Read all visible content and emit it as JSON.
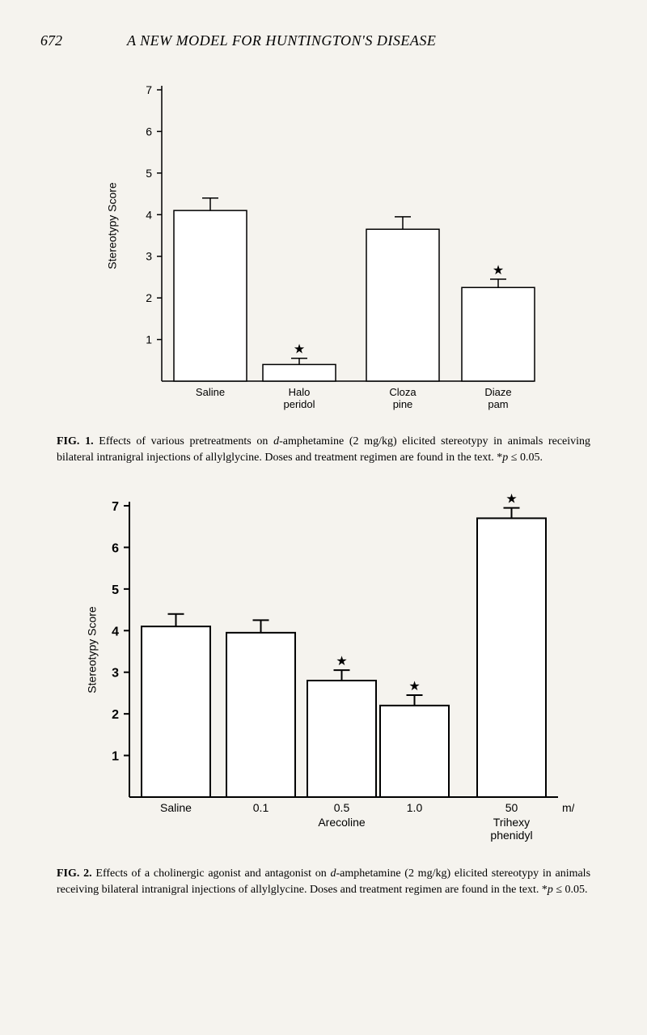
{
  "header": {
    "page_number": "672",
    "title": "A NEW MODEL FOR HUNTINGTON'S DISEASE"
  },
  "figure1": {
    "type": "bar",
    "y_axis_label": "Stereotypy Score",
    "ylim": [
      0,
      7
    ],
    "ytick_step": 1,
    "yticks": [
      1,
      2,
      3,
      4,
      5,
      6,
      7
    ],
    "bar_fill": "#ffffff",
    "bar_stroke": "#000000",
    "stroke_width": 1.5,
    "background_color": "#f5f3ee",
    "error_bar_color": "#000000",
    "bars": [
      {
        "label_line1": "Saline",
        "label_line2": "",
        "value": 4.1,
        "error": 0.3,
        "star": false
      },
      {
        "label_line1": "Halo",
        "label_line2": "peridol",
        "value": 0.4,
        "error": 0.15,
        "star": true
      },
      {
        "label_line1": "Cloza",
        "label_line2": "pine",
        "value": 3.65,
        "error": 0.3,
        "star": false
      },
      {
        "label_line1": "Diaze",
        "label_line2": "pam",
        "value": 2.25,
        "error": 0.2,
        "star": true
      }
    ],
    "caption_label": "FIG. 1.",
    "caption_text": "Effects of various pretreatments on d-amphetamine (2 mg/kg) elicited stereotypy in animals receiving bilateral intranigral injections of allylglycine. Doses and treatment regimen are found in the text. *p ≤ 0.05."
  },
  "figure2": {
    "type": "bar",
    "y_axis_label": "Stereotypy Score",
    "ylim": [
      0,
      7
    ],
    "ytick_step": 1,
    "yticks": [
      1,
      2,
      3,
      4,
      5,
      6,
      7
    ],
    "bar_fill": "#ffffff",
    "bar_stroke": "#000000",
    "stroke_width": 2,
    "background_color": "#f5f3ee",
    "error_bar_color": "#000000",
    "bars": [
      {
        "label": "Saline",
        "value": 4.1,
        "error": 0.3,
        "star": false
      },
      {
        "label": "0.1",
        "value": 3.95,
        "error": 0.3,
        "star": false
      },
      {
        "label": "0.5",
        "value": 2.8,
        "error": 0.25,
        "star": true
      },
      {
        "label": "1.0",
        "value": 2.2,
        "error": 0.25,
        "star": true
      },
      {
        "label": "50",
        "value": 6.7,
        "error": 0.25,
        "star": true
      }
    ],
    "x_group_labels": {
      "arecoline": "Arecoline",
      "trihexy_line1": "Trihexy",
      "trihexy_line2": "phenidyl",
      "unit": "m/k"
    },
    "caption_label": "FIG. 2.",
    "caption_text": "Effects of a cholinergic agonist and antagonist on d-amphetamine (2 mg/kg) elicited stereotypy in animals receiving bilateral intranigral injections of allylglycine. Doses and treatment regimen are found in the text. *p ≤ 0.05."
  }
}
